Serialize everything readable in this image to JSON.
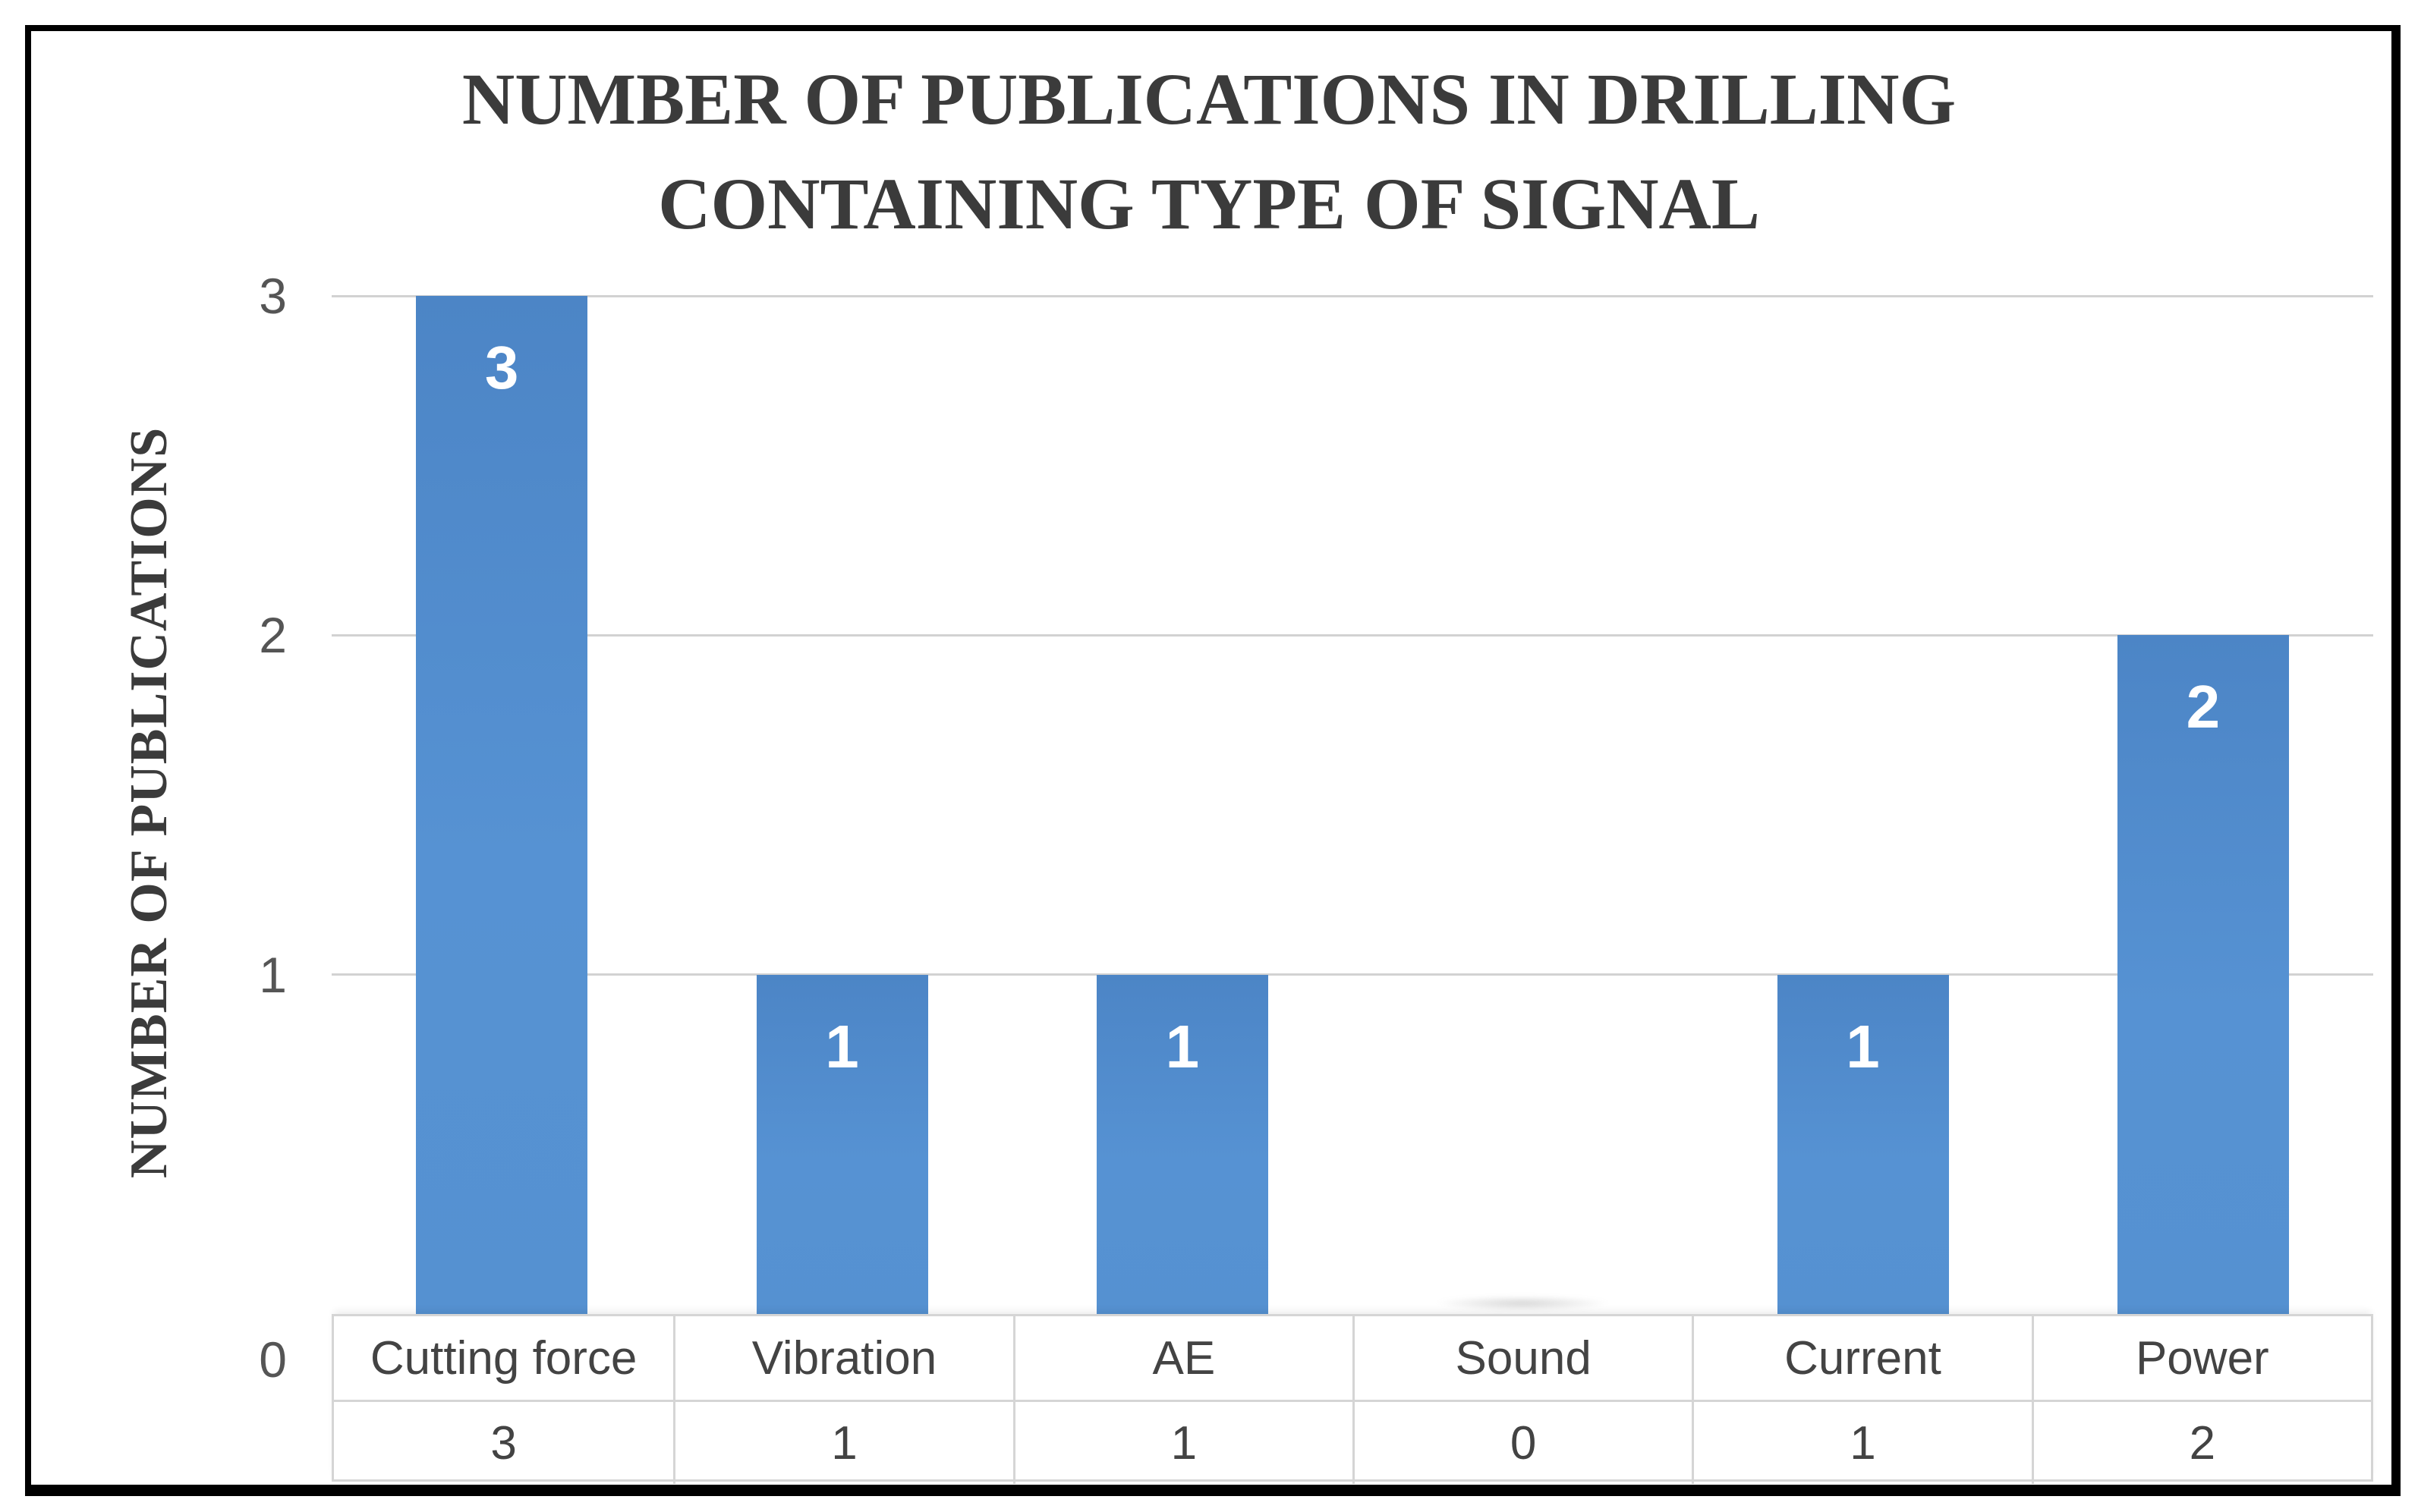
{
  "figure": {
    "title_line1": "NUMBER OF PUBLICATIONS IN DRILLING",
    "title_line2": "CONTAINING TYPE OF SIGNAL",
    "y_axis_label": "NUMBER OF PUBLICATIONS"
  },
  "colors": {
    "bar_top": "#4c85c6",
    "bar_mid": "#5692d3",
    "bar_bottom": "#5591d1",
    "bar_label_text": "#ffffff",
    "gridline": "#d2d2d2",
    "table_border": "#d5d5d5",
    "table_text": "#434343",
    "tick_text": "#555555",
    "title_text": "#3b3b3b",
    "frame_border": "#000000"
  },
  "chart_data": {
    "type": "bar",
    "title": "NUMBER OF PUBLICATIONS IN DRILLING CONTAINING TYPE OF SIGNAL",
    "categories": [
      "Cutting force",
      "Vibration",
      "AE",
      "Sound",
      "Current",
      "Power"
    ],
    "values": [
      3,
      1,
      1,
      0,
      1,
      2
    ],
    "bar_labels": [
      "3",
      "1",
      "1",
      "",
      "1",
      "2"
    ],
    "table_values": [
      "3",
      "1",
      "1",
      "0",
      "1",
      "2"
    ],
    "xlabel": "",
    "ylabel": "NUMBER OF PUBLICATIONS",
    "ylim": [
      0,
      3
    ],
    "yticks": [
      0,
      1,
      2,
      3
    ],
    "ytick_labels": [
      "0",
      "1",
      "2",
      "3"
    ],
    "grid": true,
    "legend": false,
    "legend_position": "none",
    "data_table_shown": true,
    "bar_label_position": "inside-top"
  }
}
